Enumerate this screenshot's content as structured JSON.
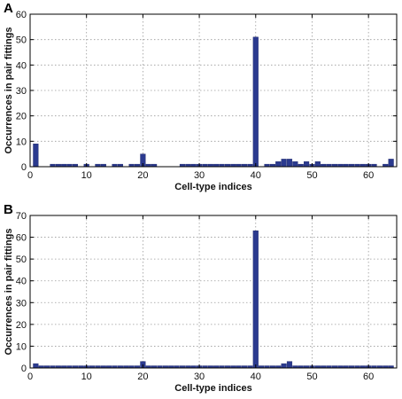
{
  "chart_data": [
    {
      "type": "bar",
      "panel_label": "A",
      "xlabel": "Cell-type indices",
      "ylabel": "Occurrences in pair fittings",
      "xlim": [
        0,
        65
      ],
      "ylim": [
        0,
        60
      ],
      "xticks": [
        0,
        10,
        20,
        30,
        40,
        50,
        60
      ],
      "yticks": [
        0,
        10,
        20,
        30,
        40,
        50,
        60
      ],
      "grid": true,
      "bar_color": "#2b3a8f",
      "x": [
        1,
        4,
        5,
        6,
        7,
        8,
        10,
        12,
        13,
        15,
        16,
        18,
        19,
        20,
        21,
        22,
        27,
        28,
        29,
        30,
        31,
        32,
        33,
        34,
        35,
        36,
        37,
        38,
        39,
        40,
        42,
        43,
        44,
        45,
        46,
        47,
        48,
        49,
        50,
        51,
        52,
        53,
        54,
        55,
        56,
        57,
        58,
        59,
        60,
        61,
        63,
        64
      ],
      "values": [
        9,
        1,
        1,
        1,
        1,
        1,
        1,
        1,
        1,
        1,
        1,
        1,
        1,
        5,
        1,
        1,
        1,
        1,
        1,
        1,
        1,
        1,
        1,
        1,
        1,
        1,
        1,
        1,
        1,
        51,
        1,
        1,
        2,
        3,
        3,
        2,
        1,
        2,
        1,
        2,
        1,
        1,
        1,
        1,
        1,
        1,
        1,
        1,
        1,
        1,
        1,
        3
      ]
    },
    {
      "type": "bar",
      "panel_label": "B",
      "xlabel": "Cell-type indices",
      "ylabel": "Occurrences in pair fittings",
      "xlim": [
        0,
        65
      ],
      "ylim": [
        0,
        70
      ],
      "xticks": [
        0,
        10,
        20,
        30,
        40,
        50,
        60
      ],
      "yticks": [
        0,
        10,
        20,
        30,
        40,
        50,
        60,
        70
      ],
      "grid": true,
      "bar_color": "#2b3a8f",
      "x": [
        1,
        2,
        3,
        4,
        5,
        6,
        7,
        8,
        9,
        10,
        11,
        12,
        13,
        14,
        15,
        16,
        17,
        18,
        19,
        20,
        21,
        22,
        23,
        24,
        25,
        26,
        27,
        28,
        29,
        30,
        31,
        32,
        33,
        34,
        35,
        36,
        37,
        38,
        39,
        40,
        41,
        42,
        43,
        44,
        45,
        46,
        47,
        48,
        49,
        50,
        51,
        52,
        53,
        54,
        55,
        56,
        57,
        58,
        59,
        60,
        61,
        62,
        63,
        64
      ],
      "values": [
        2,
        1,
        1,
        1,
        1,
        1,
        1,
        1,
        1,
        1,
        1,
        1,
        1,
        1,
        1,
        1,
        1,
        1,
        1,
        3,
        1,
        1,
        1,
        1,
        1,
        1,
        1,
        1,
        1,
        1,
        1,
        1,
        1,
        1,
        1,
        1,
        1,
        1,
        1,
        63,
        1,
        1,
        1,
        1,
        2,
        3,
        1,
        1,
        1,
        1,
        1,
        1,
        1,
        1,
        1,
        1,
        1,
        1,
        1,
        1,
        1,
        1,
        1,
        1
      ]
    }
  ]
}
